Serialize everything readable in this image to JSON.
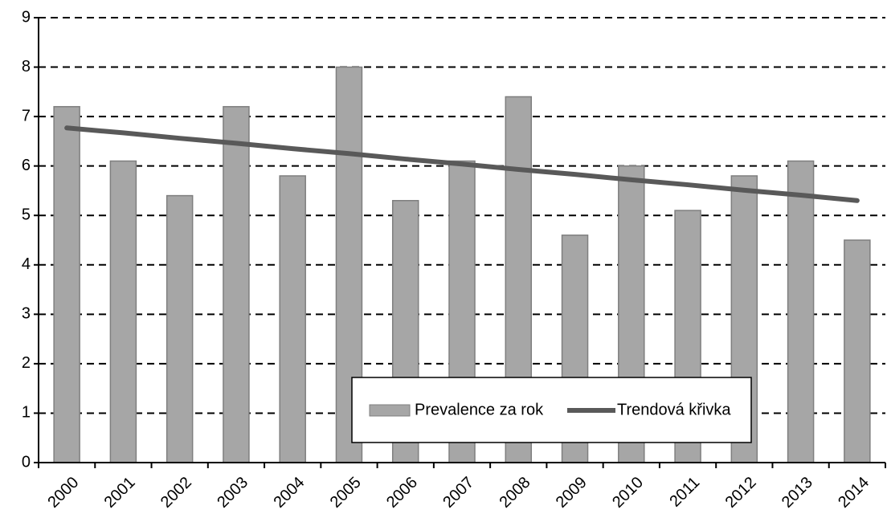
{
  "chart_data": {
    "type": "bar",
    "categories": [
      "2000",
      "2001",
      "2002",
      "2003",
      "2004",
      "2005",
      "2006",
      "2007",
      "2008",
      "2009",
      "2010",
      "2011",
      "2012",
      "2013",
      "2014"
    ],
    "series": [
      {
        "name": "Prevalence za rok",
        "type": "bar",
        "color": "#a6a6a6",
        "values": [
          7.2,
          6.1,
          5.4,
          7.2,
          5.8,
          8.0,
          5.3,
          6.1,
          7.4,
          4.6,
          6.0,
          5.1,
          5.8,
          6.1,
          4.5
        ]
      },
      {
        "name": "Trendová křivka",
        "type": "line",
        "color": "#595959",
        "values": [
          6.77,
          6.67,
          6.56,
          6.46,
          6.35,
          6.25,
          6.14,
          6.04,
          5.93,
          5.83,
          5.72,
          5.62,
          5.51,
          5.41,
          5.3
        ]
      }
    ],
    "ylim": [
      0,
      9
    ],
    "yticks": [
      0,
      1,
      2,
      3,
      4,
      5,
      6,
      7,
      8,
      9
    ],
    "grid": true
  }
}
